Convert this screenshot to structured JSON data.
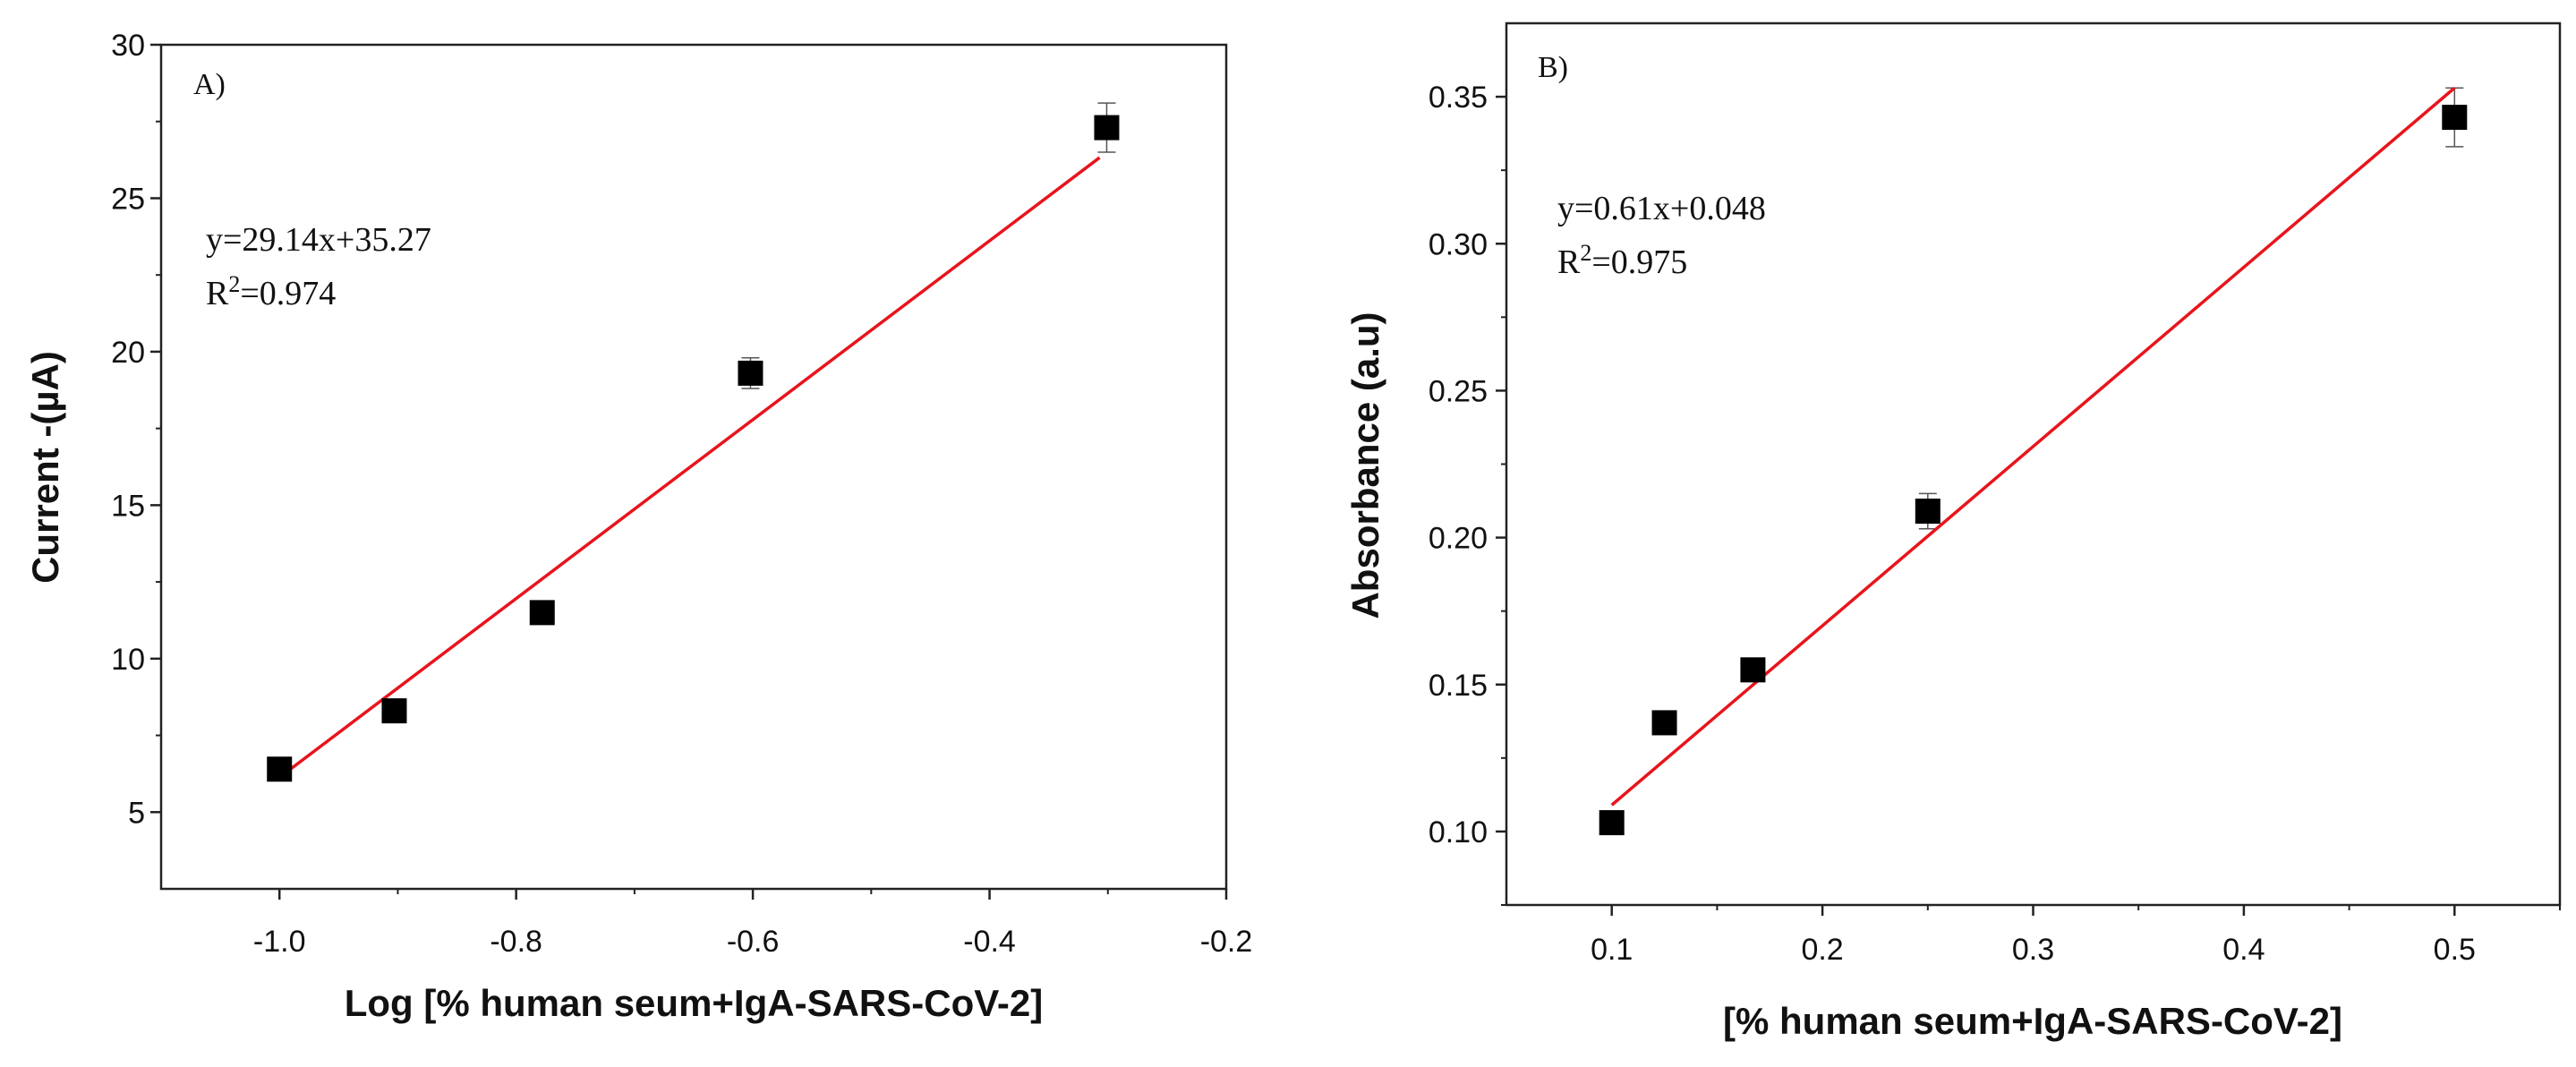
{
  "chart_data": [
    {
      "type": "scatter",
      "panel_label": "A)",
      "title": "",
      "xlabel": "Log [% human seum+IgA-SARS-CoV-2]",
      "ylabel": "Current -(µA)",
      "xlim": [
        -1.1,
        -0.2
      ],
      "ylim": [
        2.5,
        30
      ],
      "xticks": [
        -1.0,
        -0.8,
        -0.6,
        -0.4,
        -0.2
      ],
      "xtick_labels": [
        "-1.0",
        "-0.8",
        "-0.6",
        "-0.4",
        "-0.2"
      ],
      "yticks": [
        5,
        10,
        15,
        20,
        25,
        30
      ],
      "ytick_labels": [
        "5",
        "10",
        "15",
        "20",
        "25",
        "30"
      ],
      "series": [
        {
          "name": "data",
          "marker": "square",
          "color": "#000000",
          "x": [
            -1.0,
            -0.903,
            -0.778,
            -0.602,
            -0.301
          ],
          "y": [
            6.4,
            8.3,
            11.5,
            19.3,
            27.3
          ],
          "error": [
            0.15,
            0.2,
            0.2,
            0.5,
            0.8
          ]
        }
      ],
      "fit": {
        "color": "#e8141c",
        "x_range": [
          -1.0,
          -0.307
        ],
        "slope": 29.14,
        "intercept": 35.27,
        "equation": "y=29.14x+35.27",
        "r2_prefix": "R",
        "r2_sup": "2",
        "r2_value": "=0.974"
      }
    },
    {
      "type": "scatter",
      "panel_label": "B)",
      "title": "",
      "xlabel": "[% human seum+IgA-SARS-CoV-2]",
      "ylabel": "Absorbance (a.u)",
      "xlim": [
        0.05,
        0.55
      ],
      "ylim": [
        0.075,
        0.375
      ],
      "xticks": [
        0.1,
        0.2,
        0.3,
        0.4,
        0.5
      ],
      "xtick_labels": [
        "0.1",
        "0.2",
        "0.3",
        "0.4",
        "0.5"
      ],
      "yticks": [
        0.1,
        0.15,
        0.2,
        0.25,
        0.3,
        0.35
      ],
      "ytick_labels": [
        "0.10",
        "0.15",
        "0.20",
        "0.25",
        "0.30",
        "0.35"
      ],
      "series": [
        {
          "name": "data",
          "marker": "square",
          "color": "#000000",
          "x": [
            0.1,
            0.125,
            0.167,
            0.25,
            0.5
          ],
          "y": [
            0.103,
            0.137,
            0.155,
            0.209,
            0.343
          ],
          "error": [
            0.002,
            0.002,
            0.002,
            0.006,
            0.01
          ]
        }
      ],
      "fit": {
        "color": "#e8141c",
        "x_range": [
          0.1,
          0.5
        ],
        "slope": 0.61,
        "intercept": 0.048,
        "equation": "y=0.61x+0.048",
        "r2_prefix": "R",
        "r2_sup": "2",
        "r2_value": "=0.975"
      }
    }
  ]
}
